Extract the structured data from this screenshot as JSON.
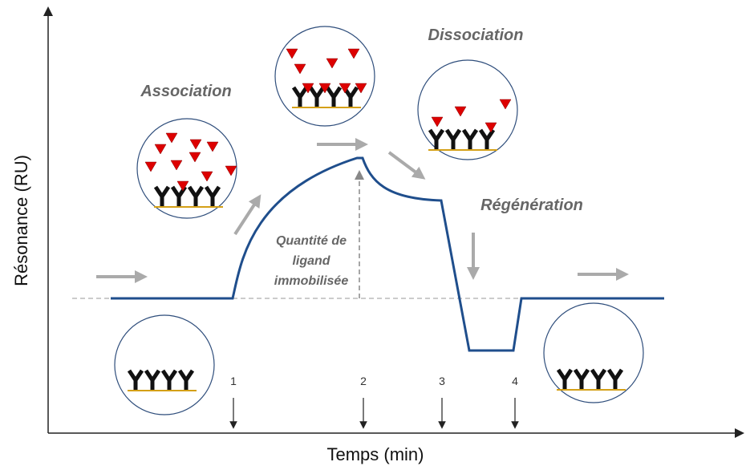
{
  "axes": {
    "y_label": "Résonance (RU)",
    "x_label": "Temps (min)"
  },
  "phases": [
    {
      "label": "Association"
    },
    {
      "label": "Dissociation"
    },
    {
      "label": "Régénération"
    }
  ],
  "annotation": {
    "lines": [
      "Quantité de",
      "ligand",
      "immobilisée"
    ]
  },
  "markers": [
    "1",
    "2",
    "3",
    "4"
  ]
}
